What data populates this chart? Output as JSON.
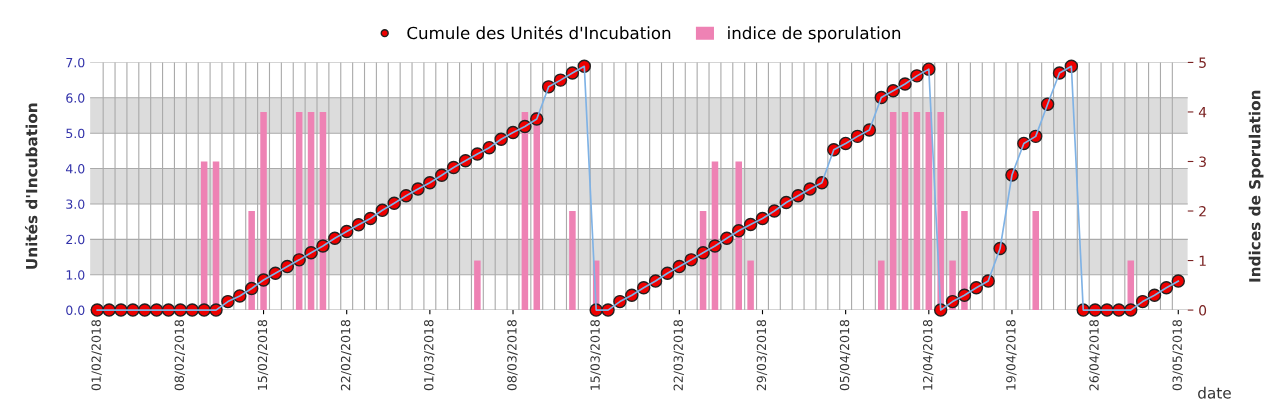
{
  "chart_data": {
    "type": "line",
    "categories": [
      "01/02/2018",
      null,
      null,
      null,
      null,
      null,
      null,
      "08/02/2018",
      null,
      null,
      null,
      null,
      null,
      null,
      "15/02/2018",
      null,
      null,
      null,
      null,
      null,
      null,
      "22/02/2018",
      null,
      null,
      null,
      null,
      null,
      null,
      "01/03/2018",
      null,
      null,
      null,
      null,
      null,
      null,
      "08/03/2018",
      null,
      null,
      null,
      null,
      null,
      null,
      "15/03/2018",
      null,
      null,
      null,
      null,
      null,
      null,
      "22/03/2018",
      null,
      null,
      null,
      null,
      null,
      null,
      "29/03/2018",
      null,
      null,
      null,
      null,
      null,
      null,
      "05/04/2018",
      null,
      null,
      null,
      null,
      null,
      null,
      "12/04/2018",
      null,
      null,
      null,
      null,
      null,
      null,
      "19/04/2018",
      null,
      null,
      null,
      null,
      null,
      null,
      "26/04/2018",
      null,
      null,
      null,
      null,
      null,
      null,
      "03/05/2018"
    ],
    "series": [
      {
        "name": "Cumule des Unités d'Incubation",
        "axis": "y",
        "color": "#ee0000",
        "values": [
          0,
          0,
          0,
          0,
          0,
          0,
          0,
          0,
          0,
          0,
          0,
          0.24,
          0.4,
          0.61,
          0.85,
          1.04,
          1.23,
          1.42,
          1.62,
          1.81,
          2.03,
          2.22,
          2.41,
          2.59,
          2.82,
          3.02,
          3.23,
          3.42,
          3.6,
          3.81,
          4.03,
          4.22,
          4.41,
          4.59,
          4.83,
          5.02,
          5.19,
          5.4,
          6.31,
          6.5,
          6.7,
          6.89,
          0,
          0,
          0.24,
          0.42,
          0.63,
          0.82,
          1.04,
          1.23,
          1.42,
          1.62,
          1.81,
          2.03,
          2.24,
          2.42,
          2.59,
          2.8,
          3.04,
          3.23,
          3.42,
          3.6,
          4.53,
          4.71,
          4.91,
          5.09,
          6.01,
          6.2,
          6.39,
          6.62,
          6.81,
          0,
          0.24,
          0.42,
          0.63,
          0.82,
          1.74,
          3.82,
          4.71,
          4.91,
          5.82,
          6.7,
          6.89,
          0,
          0,
          0,
          0,
          0,
          0.24,
          0.42,
          0.63,
          0.82
        ]
      },
      {
        "name": "indice de sporulation",
        "type": "bar",
        "axis": "y2",
        "color": "#ee82b4",
        "values": [
          0,
          0,
          0,
          0,
          0,
          0,
          0,
          0,
          0,
          3,
          3,
          0,
          0,
          2,
          4,
          0,
          0,
          4,
          4,
          4,
          0,
          0,
          0,
          0,
          0,
          0,
          0,
          0,
          0,
          0,
          0,
          0,
          1,
          0,
          0,
          0,
          4,
          4,
          0,
          0,
          2,
          0,
          1,
          0,
          0,
          0,
          0,
          0,
          0,
          0,
          0,
          2,
          3,
          0,
          3,
          1,
          0,
          0,
          0,
          0,
          0,
          0,
          0,
          0,
          0,
          0,
          1,
          4,
          4,
          4,
          4,
          4,
          1,
          2,
          0,
          0,
          0,
          0,
          0,
          2,
          0,
          0,
          0,
          0,
          0,
          0,
          0,
          1,
          0,
          0,
          0,
          0
        ]
      }
    ],
    "ylabel": "Unités d'Incubation",
    "y2label": "Indices de Sporulation",
    "xlabel": "date",
    "ylim": [
      0,
      7
    ],
    "yticks": [
      {
        "value": 0,
        "label": "0.0"
      },
      {
        "value": 1,
        "label": "1.0"
      },
      {
        "value": 2,
        "label": "2.0"
      },
      {
        "value": 3,
        "label": "3.0"
      },
      {
        "value": 4,
        "label": "4.0"
      },
      {
        "value": 5,
        "label": "5.0"
      },
      {
        "value": 6,
        "label": "6.0"
      },
      {
        "value": 7,
        "label": "7.0"
      }
    ],
    "y2lim": [
      0,
      5
    ],
    "y2ticks": [
      0,
      1,
      2,
      3,
      4,
      5
    ],
    "bands": [
      {
        "axis": "y",
        "from": 1,
        "to": 2,
        "color": "#dcdcdc"
      },
      {
        "axis": "y",
        "from": 3,
        "to": 4,
        "color": "#dcdcdc"
      },
      {
        "axis": "y",
        "from": 5,
        "to": 6,
        "color": "#dcdcdc"
      }
    ],
    "grid": true,
    "legend": "top",
    "marker": "circle",
    "line_style": "solid"
  }
}
